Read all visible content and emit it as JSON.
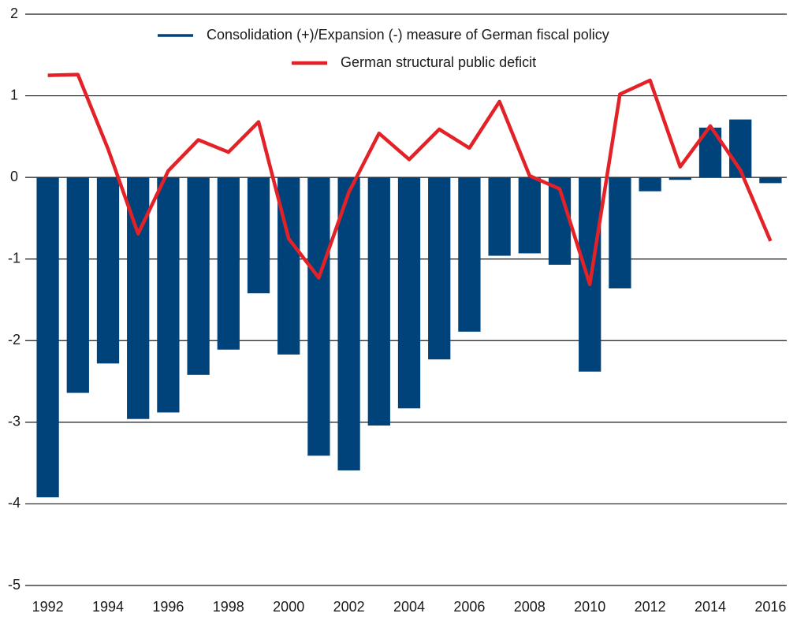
{
  "chart_data": {
    "type": "bar+line",
    "categories": [
      "1992",
      null,
      "1994",
      null,
      "1996",
      null,
      "1998",
      null,
      "2000",
      null,
      "2002",
      null,
      "2004",
      null,
      "2006",
      null,
      "2008",
      null,
      "2010",
      null,
      "2012",
      null,
      "2014",
      null,
      "2016"
    ],
    "series": [
      {
        "name": "Consolidation (+)/Expansion (-) measure of German fiscal policy",
        "type": "bar",
        "color": "#00427a",
        "values": [
          -3.92,
          -2.64,
          -2.28,
          -2.96,
          -2.88,
          -2.42,
          -2.11,
          -1.42,
          -2.17,
          -3.41,
          -3.59,
          -3.04,
          -2.83,
          -2.23,
          -1.89,
          -0.96,
          -0.93,
          -1.07,
          -2.38,
          -1.36,
          -0.17,
          -0.03,
          0.61,
          0.71,
          -0.07
        ]
      },
      {
        "name": "German structural public deficit",
        "type": "line",
        "color": "#e32228",
        "values": [
          1.25,
          1.26,
          0.35,
          -0.69,
          0.08,
          0.46,
          0.31,
          0.68,
          -0.75,
          -1.23,
          -0.18,
          0.54,
          0.22,
          0.59,
          0.36,
          0.93,
          0.02,
          -0.14,
          -1.31,
          1.02,
          1.19,
          0.13,
          0.63,
          0.09,
          -0.78
        ]
      }
    ],
    "ylim": [
      -5,
      2
    ],
    "yticks": [
      2,
      1,
      0,
      -1,
      -2,
      -3,
      -4,
      -5
    ],
    "grid": true,
    "legend": "upper center"
  }
}
